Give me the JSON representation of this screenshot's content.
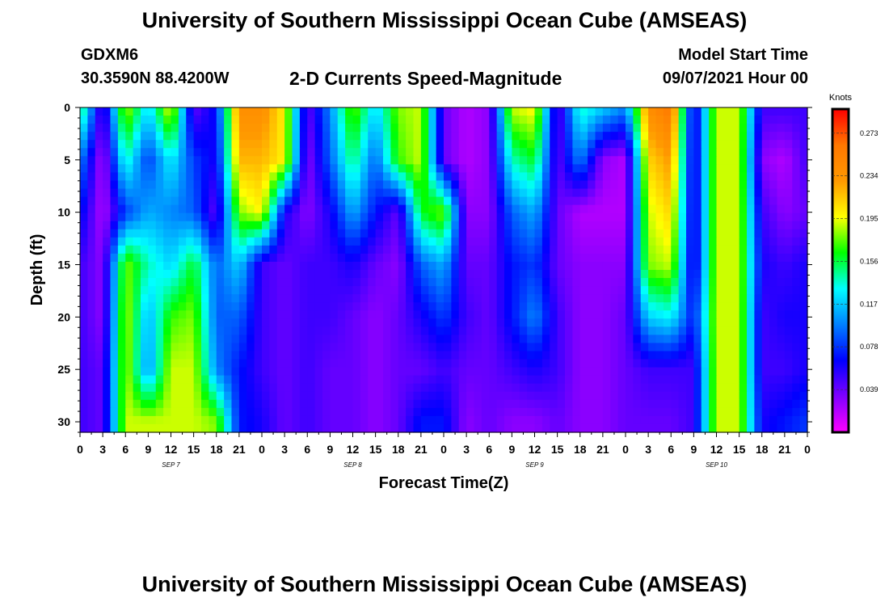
{
  "header": {
    "title": "University of Southern Mississippi Ocean Cube (AMSEAS)",
    "station": "GDXM6",
    "coordinates": "30.3590N  88.4200W",
    "product": "2-D Currents Speed-Magnitude",
    "model_start_label": "Model Start Time",
    "model_start_value": "09/07/2021 Hour 00"
  },
  "footer": {
    "title": "University of Southern Mississippi Ocean Cube (AMSEAS)"
  },
  "chart_data": {
    "type": "heatmap",
    "xlabel": "Forecast Time(Z)",
    "ylabel": "Depth (ft)",
    "x_tick_labels": [
      "0",
      "3",
      "6",
      "9",
      "12",
      "15",
      "18",
      "21",
      "0",
      "3",
      "6",
      "9",
      "12",
      "15",
      "18",
      "21",
      "0",
      "3",
      "6",
      "9",
      "12",
      "15",
      "18",
      "21",
      "0",
      "3",
      "6",
      "9",
      "12",
      "15",
      "18",
      "21",
      "0"
    ],
    "date_labels": [
      "SEP 7",
      "SEP 8",
      "SEP 9",
      "SEP 10"
    ],
    "xlim_hours": [
      0,
      96
    ],
    "y_tick_labels": [
      "0",
      "5",
      "10",
      "15",
      "20",
      "25",
      "30"
    ],
    "ylim_ft": [
      0,
      31
    ],
    "y_inverted": true,
    "colorbar": {
      "unit": "Knots",
      "tick_labels": [
        "0.273",
        "0.234",
        "0.195",
        "0.156",
        "0.117",
        "0.078",
        "0.039"
      ],
      "tick_values": [
        0.273,
        0.234,
        0.195,
        0.156,
        0.117,
        0.078,
        0.039
      ],
      "range": [
        0.0,
        0.295
      ],
      "colors": [
        "#ff00ff",
        "#8000ff",
        "#0000ff",
        "#0080ff",
        "#00ffff",
        "#00ff00",
        "#ffff00",
        "#ff9900",
        "#ff7700",
        "#ff0000"
      ]
    },
    "grid": false,
    "depth_levels_ft": [
      0,
      5,
      10,
      15,
      20,
      25,
      30
    ],
    "hours": [
      0,
      3,
      6,
      9,
      12,
      15,
      18,
      21,
      24,
      27,
      30,
      33,
      36,
      39,
      42,
      45,
      48,
      51,
      54,
      57,
      60,
      63,
      66,
      69,
      72,
      75,
      78,
      81,
      84,
      87,
      90,
      93,
      96
    ],
    "values": [
      [
        0.16,
        0.04,
        0.19,
        0.12,
        0.2,
        0.04,
        0.07,
        0.24,
        0.24,
        0.2,
        0.04,
        0.1,
        0.18,
        0.12,
        0.18,
        0.19,
        0.04,
        0.02,
        0.03,
        0.19,
        0.2,
        0.04,
        0.14,
        0.12,
        0.1,
        0.24,
        0.26,
        0.05,
        0.19,
        0.19,
        0.05,
        0.05,
        0.05
      ],
      [
        0.1,
        0.02,
        0.14,
        0.08,
        0.13,
        0.08,
        0.06,
        0.22,
        0.22,
        0.2,
        0.03,
        0.09,
        0.15,
        0.09,
        0.17,
        0.19,
        0.04,
        0.02,
        0.03,
        0.14,
        0.16,
        0.04,
        0.1,
        0.03,
        0.02,
        0.21,
        0.23,
        0.05,
        0.19,
        0.19,
        0.03,
        0.02,
        0.05
      ],
      [
        0.07,
        0.02,
        0.08,
        0.11,
        0.1,
        0.09,
        0.04,
        0.18,
        0.2,
        0.06,
        0.03,
        0.06,
        0.11,
        0.07,
        0.04,
        0.16,
        0.18,
        0.03,
        0.03,
        0.09,
        0.11,
        0.04,
        0.02,
        0.02,
        0.02,
        0.19,
        0.21,
        0.05,
        0.19,
        0.19,
        0.05,
        0.03,
        0.04
      ],
      [
        0.05,
        0.03,
        0.18,
        0.14,
        0.12,
        0.16,
        0.09,
        0.12,
        0.05,
        0.04,
        0.05,
        0.05,
        0.06,
        0.04,
        0.03,
        0.09,
        0.11,
        0.04,
        0.04,
        0.07,
        0.08,
        0.04,
        0.03,
        0.03,
        0.03,
        0.18,
        0.19,
        0.05,
        0.19,
        0.19,
        0.06,
        0.05,
        0.06
      ],
      [
        0.05,
        0.03,
        0.19,
        0.11,
        0.17,
        0.18,
        0.09,
        0.09,
        0.05,
        0.04,
        0.05,
        0.05,
        0.04,
        0.03,
        0.04,
        0.06,
        0.08,
        0.05,
        0.04,
        0.07,
        0.1,
        0.05,
        0.03,
        0.03,
        0.04,
        0.12,
        0.13,
        0.07,
        0.19,
        0.19,
        0.05,
        0.06,
        0.06
      ],
      [
        0.05,
        0.04,
        0.19,
        0.1,
        0.19,
        0.19,
        0.1,
        0.07,
        0.05,
        0.04,
        0.05,
        0.04,
        0.04,
        0.03,
        0.04,
        0.04,
        0.05,
        0.04,
        0.04,
        0.05,
        0.06,
        0.05,
        0.03,
        0.03,
        0.04,
        0.05,
        0.05,
        0.05,
        0.19,
        0.19,
        0.05,
        0.05,
        0.06
      ],
      [
        0.05,
        0.04,
        0.19,
        0.19,
        0.19,
        0.19,
        0.18,
        0.07,
        0.06,
        0.04,
        0.05,
        0.04,
        0.04,
        0.03,
        0.04,
        0.07,
        0.07,
        0.03,
        0.04,
        0.03,
        0.03,
        0.04,
        0.03,
        0.03,
        0.04,
        0.04,
        0.04,
        0.05,
        0.19,
        0.19,
        0.06,
        0.07,
        0.08
      ]
    ]
  }
}
